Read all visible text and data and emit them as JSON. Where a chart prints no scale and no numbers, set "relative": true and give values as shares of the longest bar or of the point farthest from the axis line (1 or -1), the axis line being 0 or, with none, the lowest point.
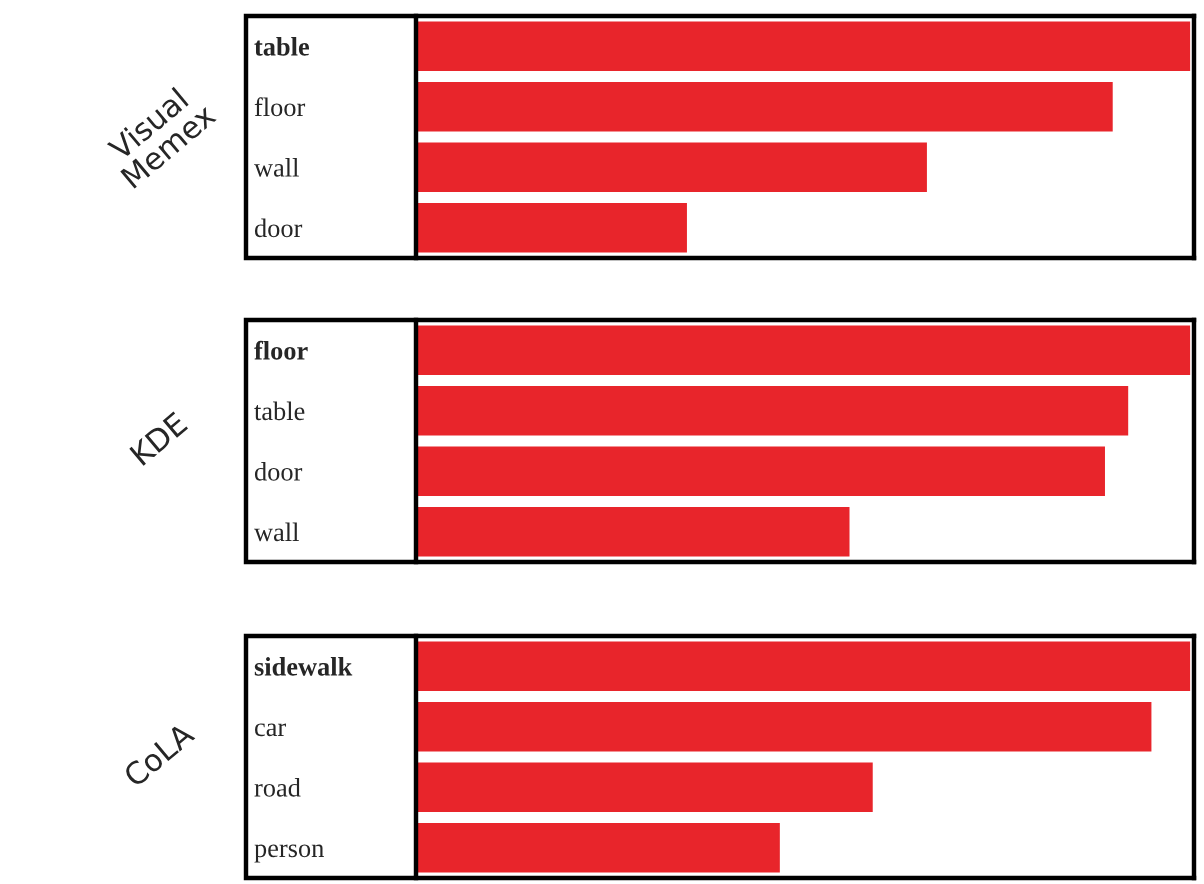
{
  "chart_data": [
    {
      "type": "bar",
      "orientation": "horizontal",
      "relative": true,
      "ylabel": "Visual\nMemex",
      "categories": [
        "table",
        "floor",
        "wall",
        "door"
      ],
      "series": [
        {
          "color": "#e8252b",
          "values": [
            1,
            0.9,
            0.66,
            0.35
          ]
        }
      ]
    },
    {
      "type": "bar",
      "orientation": "horizontal",
      "relative": true,
      "ylabel": "KDE",
      "categories": [
        "floor",
        "table",
        "door",
        "wall"
      ],
      "series": [
        {
          "color": "#e8252b",
          "values": [
            1,
            0.92,
            0.89,
            0.56
          ]
        }
      ]
    },
    {
      "type": "bar",
      "orientation": "horizontal",
      "relative": true,
      "ylabel": "CoLA",
      "categories": [
        "sidewalk",
        "car",
        "road",
        "person"
      ],
      "series": [
        {
          "color": "#e8252b",
          "values": [
            1,
            0.95,
            0.59,
            0.47
          ]
        }
      ]
    }
  ]
}
